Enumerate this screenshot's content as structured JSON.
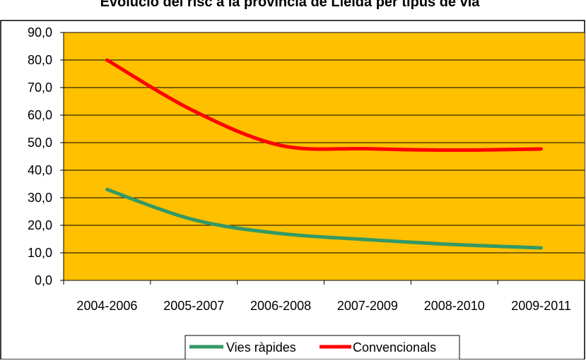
{
  "chart_data": {
    "type": "line",
    "title": "Evolució del risc a la província de Lleida per tipus de via",
    "categories": [
      "2004-2006",
      "2005-2007",
      "2006-2008",
      "2007-2009",
      "2008-2010",
      "2009-2011"
    ],
    "ylim": [
      0,
      90
    ],
    "yticks": [
      "0,0",
      "10,0",
      "20,0",
      "30,0",
      "40,0",
      "50,0",
      "60,0",
      "70,0",
      "80,0",
      "90,0"
    ],
    "grid": true,
    "legend_position": "bottom",
    "plot_background": "#FFC000",
    "series": [
      {
        "name": "Vies ràpides",
        "color": "#339966",
        "values": [
          33.0,
          22.0,
          17.0,
          14.8,
          13.0,
          11.8
        ]
      },
      {
        "name": "Convencionals",
        "color": "#FF0000",
        "values": [
          80.0,
          61.5,
          49.0,
          47.8,
          47.3,
          47.7
        ]
      }
    ]
  }
}
